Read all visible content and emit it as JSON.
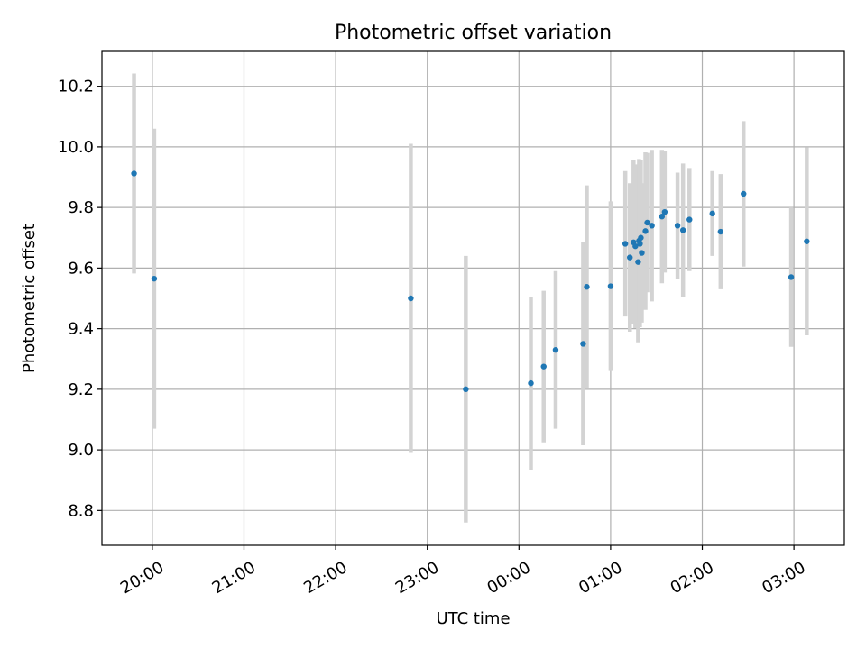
{
  "chart_data": {
    "type": "scatter",
    "title": "Photometric offset variation",
    "xlabel": "UTC time",
    "ylabel": "Photometric offset",
    "x_unit": "UTC time (hours, values past midnight exceed 24)",
    "x_ticks": [
      {
        "value": 20,
        "label": "20:00"
      },
      {
        "value": 21,
        "label": "21:00"
      },
      {
        "value": 22,
        "label": "22:00"
      },
      {
        "value": 23,
        "label": "23:00"
      },
      {
        "value": 24,
        "label": "00:00"
      },
      {
        "value": 25,
        "label": "01:00"
      },
      {
        "value": 26,
        "label": "02:00"
      },
      {
        "value": 27,
        "label": "03:00"
      }
    ],
    "y_ticks": [
      8.8,
      9.0,
      9.2,
      9.4,
      9.6,
      9.8,
      10.0,
      10.2
    ],
    "xlim": [
      19.45,
      27.55
    ],
    "ylim": [
      8.685,
      10.315
    ],
    "grid": true,
    "series_color": "#1f77b4",
    "errorbar_color": "#d3d3d3",
    "points": [
      {
        "x": 19.8,
        "y": 9.912,
        "err": 0.33
      },
      {
        "x": 20.02,
        "y": 9.565,
        "err": 0.495
      },
      {
        "x": 22.82,
        "y": 9.5,
        "err": 0.51
      },
      {
        "x": 23.42,
        "y": 9.2,
        "err": 0.44
      },
      {
        "x": 24.13,
        "y": 9.22,
        "err": 0.285
      },
      {
        "x": 24.27,
        "y": 9.275,
        "err": 0.25
      },
      {
        "x": 24.4,
        "y": 9.33,
        "err": 0.26
      },
      {
        "x": 24.7,
        "y": 9.35,
        "err": 0.335
      },
      {
        "x": 24.74,
        "y": 9.538,
        "err": 0.335
      },
      {
        "x": 25.0,
        "y": 9.54,
        "err": 0.28
      },
      {
        "x": 25.16,
        "y": 9.68,
        "err": 0.24
      },
      {
        "x": 25.21,
        "y": 9.635,
        "err": 0.245
      },
      {
        "x": 25.25,
        "y": 9.685,
        "err": 0.27
      },
      {
        "x": 25.27,
        "y": 9.672,
        "err": 0.27
      },
      {
        "x": 25.3,
        "y": 9.62,
        "err": 0.265
      },
      {
        "x": 25.31,
        "y": 9.69,
        "err": 0.27
      },
      {
        "x": 25.32,
        "y": 9.68,
        "err": 0.275
      },
      {
        "x": 25.33,
        "y": 9.7,
        "err": 0.255
      },
      {
        "x": 25.34,
        "y": 9.65,
        "err": 0.23
      },
      {
        "x": 25.38,
        "y": 9.722,
        "err": 0.26
      },
      {
        "x": 25.4,
        "y": 9.75,
        "err": 0.23
      },
      {
        "x": 25.45,
        "y": 9.74,
        "err": 0.25
      },
      {
        "x": 25.56,
        "y": 9.77,
        "err": 0.22
      },
      {
        "x": 25.59,
        "y": 9.785,
        "err": 0.2
      },
      {
        "x": 25.73,
        "y": 9.74,
        "err": 0.175
      },
      {
        "x": 25.79,
        "y": 9.725,
        "err": 0.22
      },
      {
        "x": 25.86,
        "y": 9.76,
        "err": 0.17
      },
      {
        "x": 26.11,
        "y": 9.78,
        "err": 0.14
      },
      {
        "x": 26.2,
        "y": 9.72,
        "err": 0.19
      },
      {
        "x": 26.45,
        "y": 9.845,
        "err": 0.24
      },
      {
        "x": 26.97,
        "y": 9.57,
        "err": 0.23
      },
      {
        "x": 27.14,
        "y": 9.688,
        "err": 0.31
      }
    ]
  }
}
